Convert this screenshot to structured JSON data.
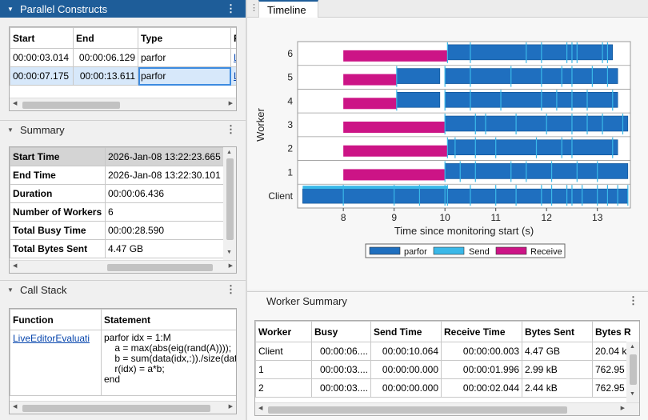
{
  "parallel_constructs": {
    "title": "Parallel Constructs",
    "columns": [
      "Start",
      "End",
      "Type",
      "F"
    ],
    "rows": [
      {
        "start": "00:00:03.014",
        "end": "00:00:06.129",
        "type": "parfor",
        "f": "L"
      },
      {
        "start": "00:00:07.175",
        "end": "00:00:13.611",
        "type": "parfor",
        "f": "L"
      }
    ]
  },
  "summary": {
    "title": "Summary",
    "rows": [
      {
        "label": "Start Time",
        "value": "2026-Jan-08 13:22:23.665"
      },
      {
        "label": "End Time",
        "value": "2026-Jan-08 13:22:30.101"
      },
      {
        "label": "Duration",
        "value": "00:00:06.436"
      },
      {
        "label": "Number of Workers",
        "value": "6"
      },
      {
        "label": "Total Busy Time",
        "value": "00:00:28.590"
      },
      {
        "label": "Total Bytes Sent",
        "value": "4.47 GB"
      }
    ]
  },
  "call_stack": {
    "title": "Call Stack",
    "col_function": "Function",
    "col_statement": "Statement",
    "function": "LiveEditorEvaluati",
    "statement": "parfor idx = 1:M\n    a = max(abs(eig(rand(A))));\n    b = sum(data(idx,:))./size(dat\n    r(idx) = a*b;\nend"
  },
  "timeline": {
    "tab_label": "Timeline",
    "menu_glyph": "⋮"
  },
  "chart_data": {
    "type": "timeline",
    "xlabel": "Time since monitoring start (s)",
    "ylabel": "Worker",
    "xlim": [
      7.1,
      13.65
    ],
    "xticks": [
      "8",
      "9",
      "10",
      "11",
      "12",
      "13"
    ],
    "rows": [
      "Client",
      "1",
      "2",
      "3",
      "4",
      "5",
      "6"
    ],
    "legend": [
      "parfor",
      "Send",
      "Receive"
    ],
    "colors": {
      "parfor": "#1f6fbf",
      "send": "#3ab8e8",
      "receive": "#cc1486"
    },
    "bars": [
      {
        "row": "6",
        "kind": "receive",
        "start": 8.0,
        "end": 10.05
      },
      {
        "row": "6",
        "kind": "parfor",
        "start": 10.05,
        "end": 13.3
      },
      {
        "row": "5",
        "kind": "receive",
        "start": 8.0,
        "end": 9.05
      },
      {
        "row": "5",
        "kind": "parfor",
        "start": 9.05,
        "end": 9.9
      },
      {
        "row": "5",
        "kind": "parfor",
        "start": 10.0,
        "end": 13.4
      },
      {
        "row": "4",
        "kind": "receive",
        "start": 8.0,
        "end": 9.05
      },
      {
        "row": "4",
        "kind": "parfor",
        "start": 9.05,
        "end": 9.9
      },
      {
        "row": "4",
        "kind": "parfor",
        "start": 10.0,
        "end": 13.4
      },
      {
        "row": "3",
        "kind": "receive",
        "start": 8.0,
        "end": 10.0
      },
      {
        "row": "3",
        "kind": "parfor",
        "start": 10.0,
        "end": 13.6
      },
      {
        "row": "2",
        "kind": "receive",
        "start": 8.0,
        "end": 10.05
      },
      {
        "row": "2",
        "kind": "parfor",
        "start": 10.05,
        "end": 13.4
      },
      {
        "row": "1",
        "kind": "receive",
        "start": 8.0,
        "end": 10.0
      },
      {
        "row": "1",
        "kind": "parfor",
        "start": 10.0,
        "end": 13.6
      },
      {
        "row": "Client",
        "kind": "parfor",
        "start": 7.2,
        "end": 13.6
      },
      {
        "row": "Client",
        "kind": "send",
        "start": 7.2,
        "end": 10.05
      }
    ],
    "send_ticks": [
      {
        "row": "6",
        "times": [
          10.05,
          10.5,
          11.6,
          11.9,
          12.4,
          12.5,
          12.6,
          13.1,
          13.2
        ]
      },
      {
        "row": "5",
        "times": [
          9.05,
          10.0,
          10.5,
          11.3,
          11.9,
          12.3,
          12.5,
          12.9,
          13.2
        ]
      },
      {
        "row": "4",
        "times": [
          9.05,
          10.0,
          10.5,
          11.1,
          11.9,
          12.2,
          12.5,
          12.8,
          13.3
        ]
      },
      {
        "row": "3",
        "times": [
          10.0,
          10.6,
          10.8,
          11.4,
          12.0,
          12.5,
          12.8,
          13.1,
          13.5
        ]
      },
      {
        "row": "2",
        "times": [
          10.05,
          10.2,
          10.6,
          11.0,
          11.8,
          12.3,
          12.5,
          13.3
        ]
      },
      {
        "row": "1",
        "times": [
          10.0,
          10.3,
          10.6,
          11.3,
          11.6,
          12.1,
          12.6,
          13.0
        ]
      },
      {
        "row": "Client",
        "times": [
          8.0,
          9.0,
          9.5,
          10.0,
          10.05,
          10.5,
          11.0,
          11.4,
          11.9,
          12.1,
          12.4,
          12.5,
          12.7,
          13.0,
          13.2,
          13.4,
          13.6
        ]
      }
    ]
  },
  "worker_summary": {
    "title": "Worker Summary",
    "columns": [
      "Worker",
      "Busy",
      "Send Time",
      "Receive Time",
      "Bytes Sent",
      "Bytes R"
    ],
    "rows": [
      [
        "Client",
        "00:00:06....",
        "00:00:10.064",
        "00:00:00.003",
        "4.47 GB",
        "20.04 k"
      ],
      [
        "1",
        "00:00:03....",
        "00:00:00.000",
        "00:00:01.996",
        "2.99 kB",
        "762.95"
      ],
      [
        "2",
        "00:00:03....",
        "00:00:00.000",
        "00:00:02.044",
        "2.44 kB",
        "762.95"
      ]
    ]
  }
}
